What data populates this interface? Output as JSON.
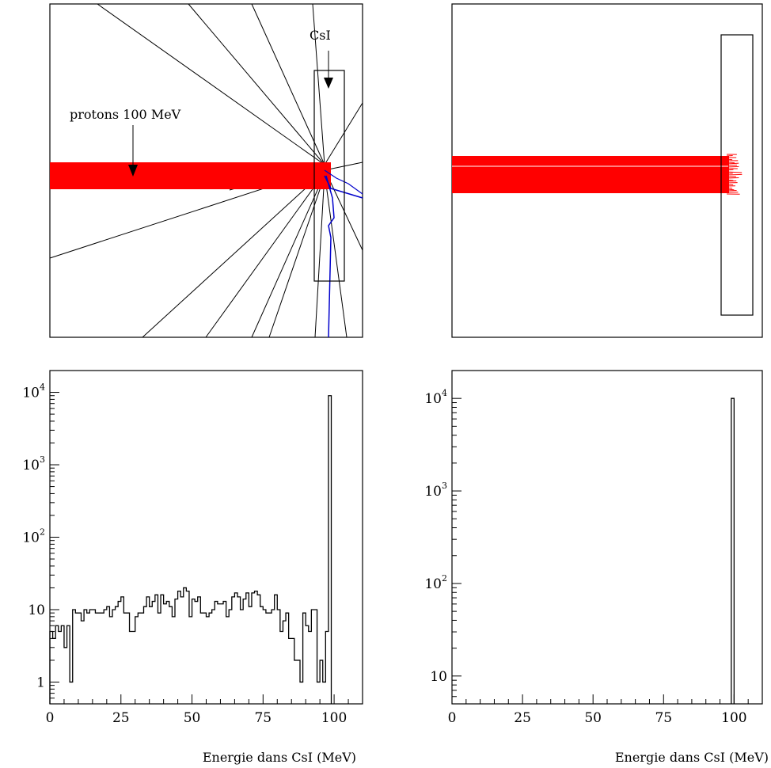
{
  "geometry_views": [
    {
      "annotations": [
        {
          "text": "CsI"
        },
        {
          "text": "protons 100 MeV"
        }
      ]
    },
    {
      "annotations": []
    }
  ],
  "colors": {
    "beam": "#ff0000",
    "secondary_track": "#0000cc",
    "neutral_track": "#000000"
  },
  "chart_data": [
    {
      "type": "bar",
      "xlabel": "",
      "ylabel": "",
      "xlim": [
        0,
        110
      ],
      "ylim": [
        0.5,
        20000
      ],
      "yscale": "log",
      "x_ticks": [
        0,
        25,
        50,
        75,
        100
      ],
      "y_ticks": [
        {
          "value": 1,
          "base": "1",
          "exp": ""
        },
        {
          "value": 10,
          "base": "10",
          "exp": ""
        },
        {
          "value": 100,
          "base": "10",
          "exp": "2"
        },
        {
          "value": 1000,
          "base": "10",
          "exp": "3"
        },
        {
          "value": 10000,
          "base": "10",
          "exp": "4"
        }
      ],
      "bin_width": 1,
      "bin_start": 0,
      "values": [
        5,
        4,
        6,
        5,
        6,
        3,
        6,
        1,
        10,
        9,
        9,
        7,
        10,
        9,
        10,
        10,
        9,
        9,
        9,
        10,
        11,
        8,
        10,
        11,
        13,
        15,
        9,
        9,
        5,
        5,
        8,
        9,
        9,
        11,
        15,
        11,
        13,
        16,
        9,
        16,
        12,
        13,
        11,
        8,
        14,
        18,
        15,
        20,
        18,
        8,
        14,
        13,
        15,
        9,
        9,
        8,
        9,
        10,
        13,
        12,
        12,
        13,
        8,
        10,
        15,
        17,
        15,
        10,
        14,
        17,
        11,
        17,
        18,
        16,
        11,
        10,
        9,
        9,
        10,
        16,
        10,
        5,
        7,
        9,
        4,
        4,
        2,
        2,
        1,
        9,
        6,
        5,
        10,
        10,
        1,
        2,
        1,
        5,
        9000
      ],
      "grid": false
    },
    {
      "type": "bar",
      "xlabel": "",
      "ylabel": "",
      "xlim": [
        0,
        110
      ],
      "ylim": [
        5,
        20000
      ],
      "yscale": "log",
      "x_ticks": [
        0,
        25,
        50,
        75,
        100
      ],
      "y_ticks": [
        {
          "value": 10,
          "base": "10",
          "exp": ""
        },
        {
          "value": 100,
          "base": "10",
          "exp": "2"
        },
        {
          "value": 1000,
          "base": "10",
          "exp": "3"
        },
        {
          "value": 10000,
          "base": "10",
          "exp": "4"
        }
      ],
      "bin_width": 1,
      "bin_start": 99,
      "values": [
        10000
      ],
      "grid": false
    }
  ],
  "shared_xlabel": "Energie dans CsI (MeV)"
}
